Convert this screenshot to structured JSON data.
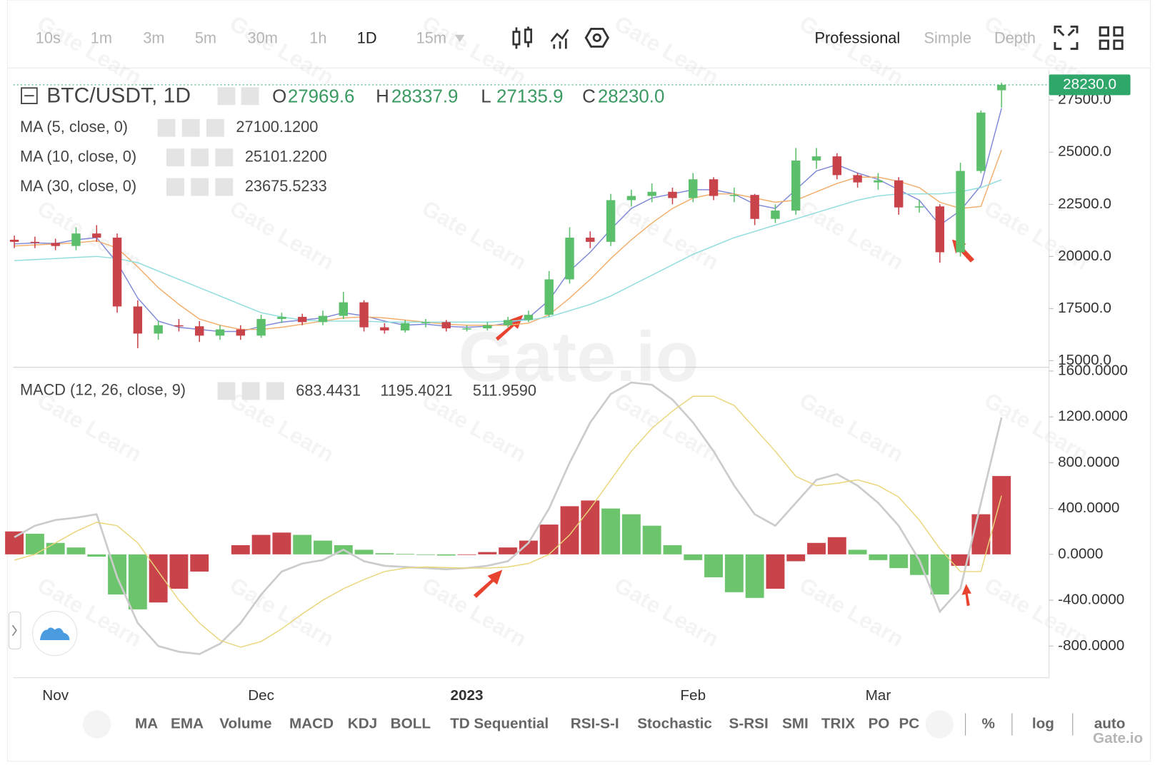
{
  "toolbar": {
    "intervals": [
      "10s",
      "1m",
      "3m",
      "5m",
      "30m",
      "1h",
      "1D",
      "15m"
    ],
    "active_interval": 6,
    "modes": [
      "Professional",
      "Simple",
      "Depth"
    ],
    "active_mode": 0
  },
  "indicator_bar": {
    "items": [
      "MA",
      "EMA",
      "Volume",
      "MACD",
      "KDJ",
      "BOLL",
      "TD Sequential",
      "RSI-S-I",
      "Stochastic",
      "S-RSI",
      "SMI",
      "TRIX",
      "PO",
      "PC"
    ],
    "scale_buttons": [
      "%",
      "log",
      "auto"
    ],
    "active_scale": 2
  },
  "watermark": "Gate.io",
  "watermark_small": "Gate Learn",
  "corner_logo": "Gate.io",
  "chart_data": [
    {
      "type": "candlestick",
      "title": "BTC/USDT, 1D",
      "categories": [
        null,
        null,
        "Nov",
        null,
        null,
        null,
        null,
        null,
        null,
        null,
        null,
        null,
        "Dec",
        null,
        null,
        null,
        null,
        null,
        null,
        null,
        null,
        null,
        "2023",
        null,
        null,
        null,
        null,
        null,
        null,
        null,
        null,
        null,
        null,
        "Feb",
        null,
        null,
        null,
        null,
        null,
        null,
        null,
        null,
        "Mar",
        null,
        null,
        null,
        null,
        null,
        null
      ],
      "open": [
        20800,
        20700,
        20650,
        20500,
        21100,
        20900,
        17600,
        16300,
        16700,
        16650,
        16200,
        16500,
        16200,
        17000,
        17100,
        16850,
        17150,
        17800,
        16600,
        16450,
        16800,
        16850,
        16550,
        16550,
        16700,
        16950,
        17200,
        18900,
        20900,
        20700,
        22700,
        22900,
        23100,
        22800,
        23700,
        22900,
        22950,
        21800,
        22200,
        24600,
        24800,
        23900,
        23550,
        23650,
        22350,
        22400,
        20200,
        24100,
        27969.6
      ],
      "high": [
        21000,
        20950,
        20850,
        21400,
        21500,
        21100,
        17900,
        16900,
        17000,
        16900,
        16700,
        16700,
        17200,
        17300,
        17250,
        17400,
        18300,
        17900,
        16800,
        16950,
        17000,
        16950,
        16700,
        16850,
        17100,
        17400,
        19300,
        21400,
        21200,
        23000,
        23200,
        23500,
        23300,
        24000,
        23800,
        23300,
        23000,
        22500,
        25200,
        25200,
        24950,
        24000,
        24000,
        23800,
        22700,
        22500,
        24500,
        27000,
        28337.9
      ],
      "low": [
        20400,
        20400,
        20300,
        20300,
        20700,
        17300,
        15600,
        16000,
        16400,
        15900,
        16000,
        16000,
        16100,
        16800,
        16700,
        16700,
        17000,
        16400,
        16300,
        16350,
        16600,
        16400,
        16400,
        16450,
        16600,
        16850,
        17100,
        18700,
        20400,
        20500,
        22400,
        22600,
        22500,
        22600,
        22700,
        22600,
        21500,
        21600,
        22000,
        24200,
        23700,
        23300,
        23200,
        22000,
        22100,
        19700,
        20000,
        24000,
        27135.9
      ],
      "close": [
        20700,
        20650,
        20500,
        21100,
        20900,
        17600,
        16300,
        16700,
        16650,
        16200,
        16500,
        16200,
        17000,
        17100,
        16850,
        17150,
        17800,
        16600,
        16450,
        16800,
        16850,
        16550,
        16550,
        16700,
        16950,
        17200,
        18900,
        20900,
        20700,
        22700,
        22900,
        23100,
        22800,
        23700,
        22900,
        22950,
        21800,
        22200,
        24600,
        24800,
        23900,
        23550,
        23650,
        22350,
        22400,
        20200,
        24100,
        26900,
        28230
      ],
      "ohlc_keys": [
        "O",
        "H",
        "L",
        "C"
      ],
      "last_labels": {
        "open": "27969.6",
        "high": "28337.9",
        "low": "27135.9",
        "close": "28230.0"
      },
      "up_color": "#5cbf6c",
      "down_color": "#c8434a",
      "legend_color": "#3a9a62",
      "last_price_color": "#2fa66a",
      "overlays": [
        {
          "name": "MA (5, close, 0)",
          "color": "#7f88d8",
          "label_color": "#1d3fcf",
          "value_label": "27100.1200",
          "values": [
            20600,
            20650,
            20620,
            20800,
            20900,
            19700,
            18000,
            16900,
            16600,
            16500,
            16400,
            16400,
            16650,
            16850,
            16950,
            17050,
            17300,
            17150,
            16900,
            16700,
            16750,
            16650,
            16600,
            16650,
            16800,
            17050,
            17900,
            19300,
            20200,
            21300,
            22300,
            22800,
            23000,
            23200,
            23200,
            23000,
            22500,
            22300,
            23200,
            24100,
            24400,
            24000,
            23700,
            23200,
            22700,
            21500,
            22200,
            23400,
            27100.12
          ]
        },
        {
          "name": "MA (10, close, 0)",
          "color": "#f3ad6a",
          "label_color": "#e8862a",
          "value_label": "25101.2200",
          "values": [
            20500,
            20550,
            20600,
            20650,
            20750,
            20400,
            19500,
            18500,
            17700,
            17000,
            16700,
            16500,
            16500,
            16600,
            16750,
            16900,
            17050,
            17100,
            17050,
            16950,
            16850,
            16750,
            16700,
            16700,
            16700,
            16800,
            17200,
            18000,
            18900,
            19900,
            20800,
            21600,
            22300,
            22800,
            23000,
            23000,
            22800,
            22600,
            22700,
            23100,
            23500,
            23800,
            23800,
            23600,
            23300,
            22600,
            22300,
            22400,
            25101.22
          ]
        },
        {
          "name": "MA (30, close, 0)",
          "color": "#8fdcdc",
          "label_color": "#4fcfd0",
          "value_label": "23675.5233",
          "values": [
            19800,
            19850,
            19900,
            19950,
            20000,
            19900,
            19700,
            19300,
            18900,
            18500,
            18100,
            17700,
            17300,
            17100,
            16950,
            16900,
            16900,
            16900,
            16850,
            16850,
            16850,
            16850,
            16850,
            16850,
            16900,
            16950,
            17100,
            17400,
            17700,
            18100,
            18600,
            19100,
            19600,
            20100,
            20500,
            20900,
            21200,
            21500,
            21800,
            22100,
            22400,
            22700,
            22900,
            23000,
            23000,
            23000,
            23100,
            23300,
            23675.5233
          ]
        }
      ],
      "ylim": [
        14680,
        28860
      ],
      "yticks": [
        {
          "value": 15000,
          "label": "15000.0"
        },
        {
          "value": 17500,
          "label": "17500.0"
        },
        {
          "value": 20000,
          "label": "20000.0"
        },
        {
          "value": 22500,
          "label": "22500.0"
        },
        {
          "value": 25000,
          "label": "25000.0"
        },
        {
          "value": 27500,
          "label": "27500.0"
        }
      ]
    },
    {
      "type": "macd",
      "title": "MACD (12, 26, close, 9)",
      "histogram": {
        "rising_color": "#c8434a",
        "falling_color": "#6cc46c",
        "label_color": "#b0262a",
        "values": [
          200,
          180,
          100,
          60,
          -20,
          -350,
          -480,
          -420,
          -300,
          -150,
          0,
          80,
          170,
          190,
          170,
          120,
          80,
          40,
          10,
          5,
          -5,
          -10,
          -5,
          20,
          60,
          120,
          260,
          420,
          470,
          400,
          350,
          250,
          80,
          -50,
          -200,
          -330,
          -380,
          -300,
          -60,
          100,
          150,
          40,
          -50,
          -120,
          -180,
          -350,
          -100,
          350,
          683.4431
        ]
      },
      "dif": {
        "color": "#cccccc",
        "label_color": "#c4c4c4",
        "values": [
          150,
          250,
          300,
          320,
          350,
          -200,
          -600,
          -800,
          -850,
          -870,
          -780,
          -600,
          -350,
          -150,
          -80,
          -50,
          40,
          -60,
          -100,
          -110,
          -120,
          -130,
          -120,
          -100,
          -60,
          100,
          400,
          800,
          1150,
          1400,
          1500,
          1480,
          1350,
          1150,
          900,
          600,
          350,
          250,
          450,
          650,
          700,
          600,
          450,
          250,
          -50,
          -500,
          -300,
          450,
          1195.4021
        ]
      },
      "dea": {
        "color": "#ead57a",
        "label_color": "#d5c338",
        "value_label": "511.9590",
        "values": [
          -50,
          0,
          100,
          200,
          280,
          250,
          100,
          -150,
          -400,
          -600,
          -750,
          -810,
          -760,
          -650,
          -520,
          -400,
          -300,
          -220,
          -150,
          -120,
          -110,
          -115,
          -120,
          -120,
          -110,
          -80,
          0,
          170,
          400,
          650,
          900,
          1100,
          1250,
          1380,
          1380,
          1300,
          1100,
          900,
          680,
          600,
          620,
          650,
          600,
          500,
          300,
          50,
          -150,
          -150,
          511.959
        ]
      },
      "ylim": [
        -1077,
        1632
      ],
      "yticks": [
        {
          "value": -800,
          "label": "-800.0000"
        },
        {
          "value": -400,
          "label": "-400.0000"
        },
        {
          "value": 0,
          "label": "0.0000"
        },
        {
          "value": 400,
          "label": "400.0000"
        },
        {
          "value": 800,
          "label": "800.0000"
        },
        {
          "value": 1200,
          "label": "1200.0000"
        },
        {
          "value": 1600,
          "label": "1600.0000"
        }
      ]
    }
  ]
}
